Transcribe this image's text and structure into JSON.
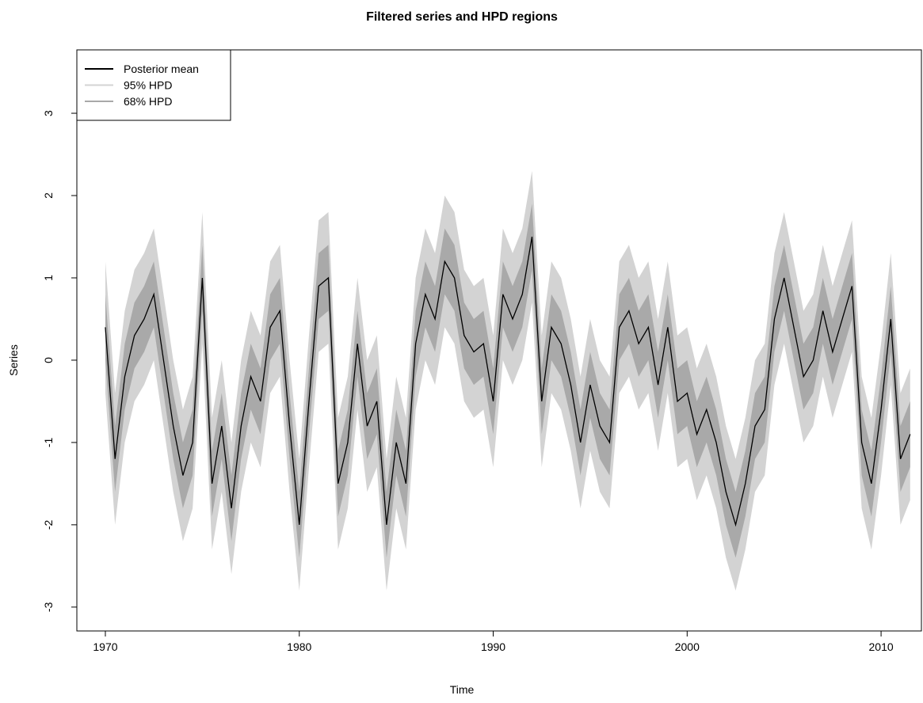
{
  "chart_data": {
    "type": "line",
    "title": "Filtered series and HPD regions",
    "x_label": "Time",
    "y_label": "Series",
    "x": [
      1970.0,
      1970.5,
      1971.0,
      1971.5,
      1972.0,
      1972.5,
      1973.0,
      1973.5,
      1974.0,
      1974.5,
      1975.0,
      1975.5,
      1976.0,
      1976.5,
      1977.0,
      1977.5,
      1978.0,
      1978.5,
      1979.0,
      1979.5,
      1980.0,
      1980.5,
      1981.0,
      1981.5,
      1982.0,
      1982.5,
      1983.0,
      1983.5,
      1984.0,
      1984.5,
      1985.0,
      1985.5,
      1986.0,
      1986.5,
      1987.0,
      1987.5,
      1988.0,
      1988.5,
      1989.0,
      1989.5,
      1990.0,
      1990.5,
      1991.0,
      1991.5,
      1992.0,
      1992.5,
      1993.0,
      1993.5,
      1994.0,
      1994.5,
      1995.0,
      1995.5,
      1996.0,
      1996.5,
      1997.0,
      1997.5,
      1998.0,
      1998.5,
      1999.0,
      1999.5,
      2000.0,
      2000.5,
      2001.0,
      2001.5,
      2002.0,
      2002.5,
      2003.0,
      2003.5,
      2004.0,
      2004.5,
      2005.0,
      2005.5,
      2006.0,
      2006.5,
      2007.0,
      2007.5,
      2008.0,
      2008.5,
      2009.0,
      2009.5,
      2010.0,
      2010.5,
      2011.0,
      2011.5
    ],
    "series": [
      {
        "name": "Posterior mean",
        "color": "#000000",
        "values": [
          0.4,
          -1.2,
          -0.2,
          0.3,
          0.5,
          0.8,
          0.0,
          -0.8,
          -1.4,
          -1.0,
          1.0,
          -1.5,
          -0.8,
          -1.8,
          -0.8,
          -0.2,
          -0.5,
          0.4,
          0.6,
          -0.8,
          -2.0,
          -0.5,
          0.9,
          1.0,
          -1.5,
          -1.0,
          0.2,
          -0.8,
          -0.5,
          -2.0,
          -1.0,
          -1.5,
          0.2,
          0.8,
          0.5,
          1.2,
          1.0,
          0.3,
          0.1,
          0.2,
          -0.5,
          0.8,
          0.5,
          0.8,
          1.5,
          -0.5,
          0.4,
          0.2,
          -0.3,
          -1.0,
          -0.3,
          -0.8,
          -1.0,
          0.4,
          0.6,
          0.2,
          0.4,
          -0.3,
          0.4,
          -0.5,
          -0.4,
          -0.9,
          -0.6,
          -1.0,
          -1.6,
          -2.0,
          -1.5,
          -0.8,
          -0.6,
          0.5,
          1.0,
          0.4,
          -0.2,
          0.0,
          0.6,
          0.1,
          0.5,
          0.9,
          -1.0,
          -1.5,
          -0.6,
          0.5,
          -1.2,
          -0.9
        ]
      },
      {
        "name": "95% HPD",
        "color": "#d3d3d3",
        "lower": [
          -0.4,
          -2.0,
          -1.0,
          -0.5,
          -0.3,
          0.0,
          -0.8,
          -1.6,
          -2.2,
          -1.8,
          0.2,
          -2.3,
          -1.6,
          -2.6,
          -1.6,
          -1.0,
          -1.3,
          -0.4,
          -0.2,
          -1.6,
          -2.8,
          -1.3,
          0.1,
          0.2,
          -2.3,
          -1.8,
          -0.6,
          -1.6,
          -1.3,
          -2.8,
          -1.8,
          -2.3,
          -0.6,
          0.0,
          -0.3,
          0.4,
          0.2,
          -0.5,
          -0.7,
          -0.6,
          -1.3,
          0.0,
          -0.3,
          0.0,
          0.7,
          -1.3,
          -0.4,
          -0.6,
          -1.1,
          -1.8,
          -1.1,
          -1.6,
          -1.8,
          -0.4,
          -0.2,
          -0.6,
          -0.4,
          -1.1,
          -0.4,
          -1.3,
          -1.2,
          -1.7,
          -1.4,
          -1.8,
          -2.4,
          -2.8,
          -2.3,
          -1.6,
          -1.4,
          -0.3,
          0.2,
          -0.4,
          -1.0,
          -0.8,
          -0.2,
          -0.7,
          -0.3,
          0.1,
          -1.8,
          -2.3,
          -1.4,
          -0.3,
          -2.0,
          -1.7
        ],
        "upper": [
          1.2,
          -0.4,
          0.6,
          1.1,
          1.3,
          1.6,
          0.8,
          0.0,
          -0.6,
          -0.2,
          1.8,
          -0.7,
          0.0,
          -1.0,
          0.0,
          0.6,
          0.3,
          1.2,
          1.4,
          0.0,
          -1.2,
          0.3,
          1.7,
          1.8,
          -0.7,
          -0.2,
          1.0,
          0.0,
          0.3,
          -1.2,
          -0.2,
          -0.7,
          1.0,
          1.6,
          1.3,
          2.0,
          1.8,
          1.1,
          0.9,
          1.0,
          0.3,
          1.6,
          1.3,
          1.6,
          2.3,
          0.3,
          1.2,
          1.0,
          0.5,
          -0.2,
          0.5,
          0.0,
          -0.2,
          1.2,
          1.4,
          1.0,
          1.2,
          0.5,
          1.2,
          0.3,
          0.4,
          -0.1,
          0.2,
          -0.2,
          -0.8,
          -1.2,
          -0.7,
          0.0,
          0.2,
          1.3,
          1.8,
          1.2,
          0.6,
          0.8,
          1.4,
          0.9,
          1.3,
          1.7,
          -0.2,
          -0.7,
          0.2,
          1.3,
          -0.4,
          -0.1
        ]
      },
      {
        "name": "68% HPD",
        "color": "#a9a9a9",
        "lower": [
          0.0,
          -1.6,
          -0.6,
          -0.1,
          0.1,
          0.4,
          -0.4,
          -1.2,
          -1.8,
          -1.4,
          0.6,
          -1.9,
          -1.2,
          -2.2,
          -1.2,
          -0.6,
          -0.9,
          0.0,
          0.2,
          -1.2,
          -2.4,
          -0.9,
          0.5,
          0.6,
          -1.9,
          -1.4,
          -0.2,
          -1.2,
          -0.9,
          -2.4,
          -1.4,
          -1.9,
          -0.2,
          0.4,
          0.1,
          0.8,
          0.6,
          -0.1,
          -0.3,
          -0.2,
          -0.9,
          0.4,
          0.1,
          0.4,
          1.1,
          -0.9,
          0.0,
          -0.2,
          -0.7,
          -1.4,
          -0.7,
          -1.2,
          -1.4,
          0.0,
          0.2,
          -0.2,
          0.0,
          -0.7,
          0.0,
          -0.9,
          -0.8,
          -1.3,
          -1.0,
          -1.4,
          -2.0,
          -2.4,
          -1.9,
          -1.2,
          -1.0,
          0.1,
          0.6,
          0.0,
          -0.6,
          -0.4,
          0.2,
          -0.3,
          0.1,
          0.5,
          -1.4,
          -1.9,
          -1.0,
          0.1,
          -1.6,
          -1.3
        ],
        "upper": [
          0.8,
          -0.8,
          0.2,
          0.7,
          0.9,
          1.2,
          0.4,
          -0.4,
          -1.0,
          -0.6,
          1.4,
          -1.1,
          -0.4,
          -1.4,
          -0.4,
          0.2,
          -0.1,
          0.8,
          1.0,
          -0.4,
          -1.6,
          -0.1,
          1.3,
          1.4,
          -1.1,
          -0.6,
          0.6,
          -0.4,
          -0.1,
          -1.6,
          -0.6,
          -1.1,
          0.6,
          1.2,
          0.9,
          1.6,
          1.4,
          0.7,
          0.5,
          0.6,
          -0.1,
          1.2,
          0.9,
          1.2,
          1.9,
          -0.1,
          0.8,
          0.6,
          0.1,
          -0.6,
          0.1,
          -0.4,
          -0.6,
          0.8,
          1.0,
          0.6,
          0.8,
          0.1,
          0.8,
          -0.1,
          0.0,
          -0.5,
          -0.2,
          -0.6,
          -1.2,
          -1.6,
          -1.1,
          -0.4,
          -0.2,
          0.9,
          1.4,
          0.8,
          0.2,
          0.4,
          1.0,
          0.5,
          0.9,
          1.3,
          -0.6,
          -1.1,
          -0.2,
          0.9,
          -0.8,
          -0.5
        ]
      }
    ],
    "xlim": [
      1968.53,
      2012.08
    ],
    "ylim": [
      -3.29,
      3.77
    ],
    "xticks": [
      1970,
      1980,
      1990,
      2000,
      2010
    ],
    "yticks": [
      -3,
      -2,
      -1,
      0,
      1,
      2,
      3
    ],
    "legend": "top-left"
  }
}
